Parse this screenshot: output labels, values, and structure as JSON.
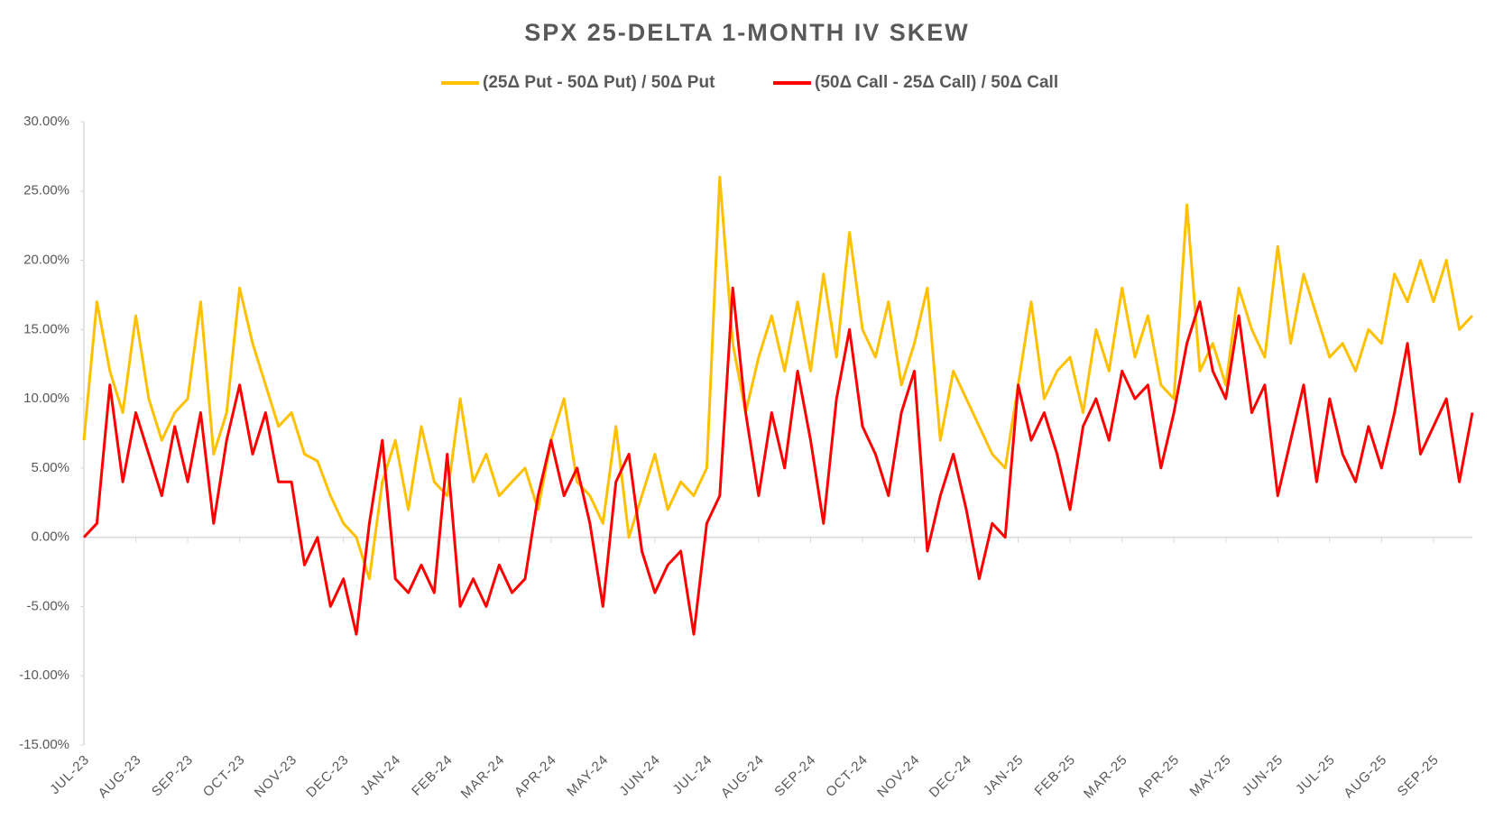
{
  "chart_data": {
    "type": "line",
    "title": "SPX 25-DELTA 1-MONTH IV SKEW",
    "categories": [
      "JUL-23",
      null,
      null,
      null,
      "AUG-23",
      null,
      null,
      null,
      "SEP-23",
      null,
      null,
      null,
      "OCT-23",
      null,
      null,
      null,
      "NOV-23",
      null,
      null,
      null,
      "DEC-23",
      null,
      null,
      null,
      "JAN-24",
      null,
      null,
      null,
      "FEB-24",
      null,
      null,
      null,
      "MAR-24",
      null,
      null,
      null,
      "APR-24",
      null,
      null,
      null,
      "MAY-24",
      null,
      null,
      null,
      "JUN-24",
      null,
      null,
      null,
      "JUL-24",
      null,
      null,
      null,
      "AUG-24",
      null,
      null,
      null,
      "SEP-24",
      null,
      null,
      null,
      "OCT-24",
      null,
      null,
      null,
      "NOV-24",
      null,
      null,
      null,
      "DEC-24",
      null,
      null,
      null,
      "JAN-25",
      null,
      null,
      null,
      "FEB-25",
      null,
      null,
      null,
      "MAR-25",
      null,
      null,
      null,
      "APR-25",
      null,
      null,
      null,
      "MAY-25",
      null,
      null,
      null,
      "JUN-25",
      null,
      null,
      null,
      "JUL-25",
      null,
      null,
      null,
      "AUG-25",
      null,
      null,
      null,
      "SEP-25",
      null,
      null,
      null
    ],
    "series": [
      {
        "name": "(25Δ Put - 50Δ Put) / 50Δ Put",
        "color": "#FFC000",
        "values": [
          7,
          17,
          12,
          9,
          16,
          10,
          7,
          9,
          10,
          17,
          6,
          9,
          18,
          14,
          11,
          8,
          9,
          6,
          5.5,
          3,
          1,
          0,
          -3,
          4,
          7,
          2,
          8,
          4,
          3,
          10,
          4,
          6,
          3,
          4,
          5,
          2,
          7,
          10,
          4,
          3,
          1,
          8,
          0,
          3,
          6,
          2,
          4,
          3,
          5,
          26,
          14,
          9,
          13,
          16,
          12,
          17,
          12,
          19,
          13,
          22,
          15,
          13,
          17,
          11,
          14,
          18,
          7,
          12,
          10,
          8,
          6,
          5,
          11,
          17,
          10,
          12,
          13,
          9,
          15,
          12,
          18,
          13,
          16,
          11,
          10,
          24,
          12,
          14,
          11,
          18,
          15,
          13,
          21,
          14,
          19,
          16,
          13,
          14,
          12,
          15,
          14,
          19,
          17,
          20,
          17,
          20,
          15,
          16
        ]
      },
      {
        "name": "(50Δ Call - 25Δ Call) / 50Δ Call",
        "color": "#FF0000",
        "values": [
          0,
          1,
          11,
          4,
          9,
          6,
          3,
          8,
          4,
          9,
          1,
          7,
          11,
          6,
          9,
          4,
          4,
          -2,
          0,
          -5,
          -3,
          -7,
          1,
          7,
          -3,
          -4,
          -2,
          -4,
          6,
          -5,
          -3,
          -5,
          -2,
          -4,
          -3,
          3,
          7,
          3,
          5,
          1,
          -5,
          4,
          6,
          -1,
          -4,
          -2,
          -1,
          -7,
          1,
          3,
          18,
          9,
          3,
          9,
          5,
          12,
          7,
          1,
          10,
          15,
          8,
          6,
          3,
          9,
          12,
          -1,
          3,
          6,
          2,
          -3,
          1,
          0,
          11,
          7,
          9,
          6,
          2,
          8,
          10,
          7,
          12,
          10,
          11,
          5,
          9,
          14,
          17,
          12,
          10,
          16,
          9,
          11,
          3,
          7,
          11,
          4,
          10,
          6,
          4,
          8,
          5,
          9,
          14,
          6,
          8,
          10,
          4,
          9
        ]
      }
    ],
    "ylim": [
      -15,
      30
    ],
    "yticks": [
      {
        "value": -15,
        "label": "-15.00%"
      },
      {
        "value": -10,
        "label": "-10.00%"
      },
      {
        "value": -5,
        "label": "-5.00%"
      },
      {
        "value": 0,
        "label": "0.00%"
      },
      {
        "value": 5,
        "label": "5.00%"
      },
      {
        "value": 10,
        "label": "10.00%"
      },
      {
        "value": 15,
        "label": "15.00%"
      },
      {
        "value": 20,
        "label": "20.00%"
      },
      {
        "value": 25,
        "label": "25.00%"
      },
      {
        "value": 30,
        "label": "30.00%"
      }
    ],
    "grid": false,
    "legend": "top"
  }
}
